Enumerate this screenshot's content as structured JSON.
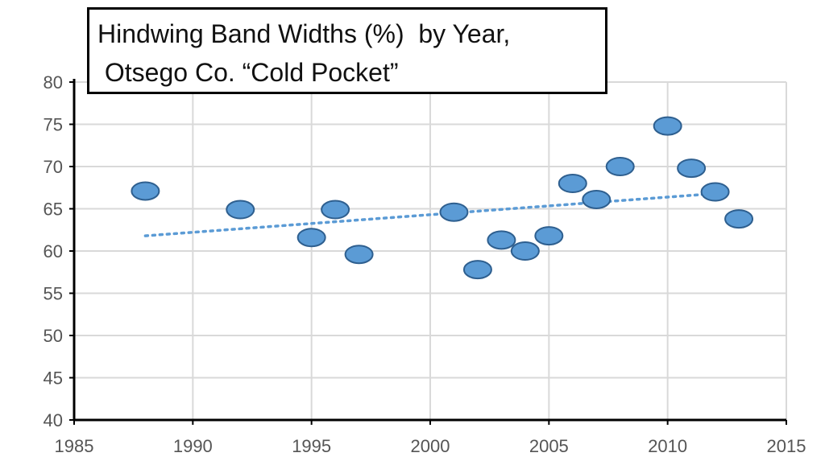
{
  "chart_data": {
    "type": "scatter",
    "title_lines": [
      "Hindwing Band Widths (%)  by Year,",
      " Otsego Co. “Cold Pocket”"
    ],
    "xlabel": "",
    "ylabel": "",
    "xlim": [
      1985,
      2015
    ],
    "ylim": [
      40,
      80
    ],
    "x_ticks": [
      1985,
      1990,
      1995,
      2000,
      2005,
      2010,
      2015
    ],
    "y_ticks": [
      40,
      45,
      50,
      55,
      60,
      65,
      70,
      75,
      80
    ],
    "grid": true,
    "points": [
      {
        "x": 1988,
        "y": 67.1
      },
      {
        "x": 1992,
        "y": 64.9
      },
      {
        "x": 1995,
        "y": 61.6
      },
      {
        "x": 1996,
        "y": 64.9
      },
      {
        "x": 1997,
        "y": 59.6
      },
      {
        "x": 2001,
        "y": 64.6
      },
      {
        "x": 2002,
        "y": 57.8
      },
      {
        "x": 2003,
        "y": 61.3
      },
      {
        "x": 2004,
        "y": 60.0
      },
      {
        "x": 2005,
        "y": 61.8
      },
      {
        "x": 2006,
        "y": 68.0
      },
      {
        "x": 2007,
        "y": 66.1
      },
      {
        "x": 2008,
        "y": 70.0
      },
      {
        "x": 2010,
        "y": 74.8
      },
      {
        "x": 2011,
        "y": 69.8
      },
      {
        "x": 2012,
        "y": 67.0
      },
      {
        "x": 2013,
        "y": 63.8
      }
    ],
    "trendline": {
      "style": "dotted",
      "x": [
        1988,
        2012
      ],
      "y": [
        61.8,
        66.8
      ]
    },
    "colors": {
      "marker_fill": "#5b9bd5",
      "marker_stroke": "#2e5f8f",
      "trendline": "#5b9bd5",
      "grid": "#d9d9d9",
      "axis": "#000000"
    }
  }
}
